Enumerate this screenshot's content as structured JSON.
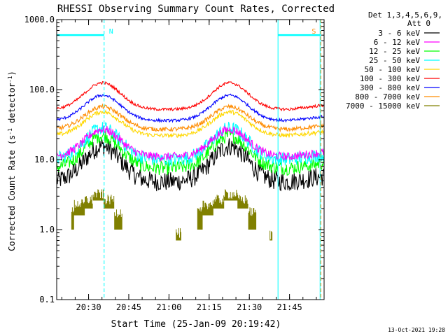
{
  "chart_data": {
    "type": "line",
    "title": "RHESSI Observing Summary Count Rates, Corrected",
    "xlabel": "Start Time (25-Jan-09 20:19:42)",
    "ylabel": "Corrected Count Rate (s",
    "ylabel_sup": "-1",
    "ylabel_mid": " detector",
    "ylabel_end": ")",
    "y_scale": "log",
    "ylim": [
      0.1,
      1000
    ],
    "xlim_min": [
      20.0,
      120.0
    ],
    "x_ticks": [
      {
        "t": 10.3,
        "label": "20:30"
      },
      {
        "t": 25.3,
        "label": "20:45"
      },
      {
        "t": 40.3,
        "label": "21:00"
      },
      {
        "t": 55.3,
        "label": "21:15"
      },
      {
        "t": 70.3,
        "label": "21:30"
      },
      {
        "t": 85.3,
        "label": "21:45"
      }
    ],
    "y_ticks": [
      {
        "v": 0.1,
        "label": "0.1"
      },
      {
        "v": 1,
        "label": "1.0"
      },
      {
        "v": 10,
        "label": "10.0"
      },
      {
        "v": 100,
        "label": "100.0"
      },
      {
        "v": 1000,
        "label": "1000.0"
      }
    ],
    "legend_header": [
      "Det 1,3,4,5,6,9,",
      "Att 0"
    ],
    "legend_placement": "right",
    "series": [
      {
        "name": "3 - 6 keV",
        "color": "#000000",
        "base": 4.8,
        "peak": 15.5,
        "noise": 0.14
      },
      {
        "name": "6 - 12 keV",
        "color": "#ff00ff",
        "base": 11.0,
        "peak": 27.0,
        "noise": 0.06
      },
      {
        "name": "12 - 25 keV",
        "color": "#00ff00",
        "base": 7.5,
        "peak": 22.0,
        "noise": 0.1
      },
      {
        "name": "25 - 50 keV",
        "color": "#00ffff",
        "base": 10.0,
        "peak": 28.0,
        "noise": 0.1
      },
      {
        "name": "50 - 100 keV",
        "color": "#ffd700",
        "base": 22.0,
        "peak": 48.0,
        "noise": 0.03
      },
      {
        "name": "100 - 300 keV",
        "color": "#ff0000",
        "base": 52.0,
        "peak": 125.0,
        "noise": 0.02
      },
      {
        "name": "300 - 800 keV",
        "color": "#0000ff",
        "base": 36.0,
        "peak": 83.0,
        "noise": 0.02
      },
      {
        "name": "800 - 7000 keV",
        "color": "#ff8c00",
        "base": 27.0,
        "peak": 57.0,
        "noise": 0.03
      },
      {
        "name": "7000 - 15000 keV",
        "color": "#808000",
        "base": 0,
        "peak": 0,
        "noise": 0
      }
    ],
    "annotations": [
      {
        "label": "N",
        "color": "#00ffff",
        "t": 16.1,
        "t_end_bar": [
          -5,
          16.1
        ],
        "bar_value": 600
      },
      {
        "label": "S",
        "color": "#ff8c00",
        "t": 97.0,
        "t_end_bar": [
          81.0,
          97.0
        ],
        "bar_value": 600
      }
    ],
    "saa_lines": [
      -5.0,
      81.0,
      96.7
    ],
    "timestamp": "13-Oct-2021 19:28"
  }
}
